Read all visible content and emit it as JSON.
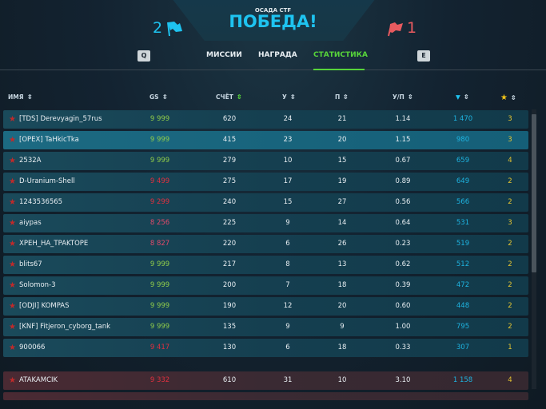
{
  "header": {
    "mode": "ОСАДА CTF",
    "result": "ПОБЕДА!",
    "team_score": "2",
    "enemy_score": "1",
    "team_color": "#1ec3f0",
    "enemy_color": "#e85a5f"
  },
  "tabs": {
    "prev_key": "Q",
    "next_key": "E",
    "items": [
      {
        "label": "МИССИИ"
      },
      {
        "label": "НАГРАДА"
      },
      {
        "label": "СТАТИСТИКА",
        "active": true
      }
    ]
  },
  "columns": {
    "name": "ИМЯ",
    "gs": "GS",
    "score": "СЧЁТ",
    "kills": "У",
    "deaths": "П",
    "kd": "У/П",
    "diamond_icon": "diamond-icon",
    "star_icon": "star-icon"
  },
  "team": [
    {
      "name": "[TDS] Derevyagin_57rus",
      "gs": "9 999",
      "score": "620",
      "kills": "24",
      "deaths": "21",
      "kd": "1.14",
      "diamonds": "1 470",
      "stars": "3"
    },
    {
      "name": "[OPEX] TaHkicTka",
      "gs": "9 999",
      "score": "415",
      "kills": "23",
      "deaths": "20",
      "kd": "1.15",
      "diamonds": "980",
      "stars": "3",
      "selected": true
    },
    {
      "name": "2532A",
      "gs": "9 999",
      "score": "279",
      "kills": "10",
      "deaths": "15",
      "kd": "0.67",
      "diamonds": "659",
      "stars": "4"
    },
    {
      "name": "D-Uranium-Shell",
      "gs": "9 499",
      "score": "275",
      "kills": "17",
      "deaths": "19",
      "kd": "0.89",
      "diamonds": "649",
      "stars": "2"
    },
    {
      "name": "1243536565",
      "gs": "9 299",
      "score": "240",
      "kills": "15",
      "deaths": "27",
      "kd": "0.56",
      "diamonds": "566",
      "stars": "2"
    },
    {
      "name": "aiypas",
      "gs": "8 256",
      "score": "225",
      "kills": "9",
      "deaths": "14",
      "kd": "0.64",
      "diamonds": "531",
      "stars": "3"
    },
    {
      "name": "XPEH_HA_TPAKTOPE",
      "gs": "8 827",
      "score": "220",
      "kills": "6",
      "deaths": "26",
      "kd": "0.23",
      "diamonds": "519",
      "stars": "2"
    },
    {
      "name": "blits67",
      "gs": "9 999",
      "score": "217",
      "kills": "8",
      "deaths": "13",
      "kd": "0.62",
      "diamonds": "512",
      "stars": "2"
    },
    {
      "name": "Solomon-3",
      "gs": "9 999",
      "score": "200",
      "kills": "7",
      "deaths": "18",
      "kd": "0.39",
      "diamonds": "472",
      "stars": "2"
    },
    {
      "name": "[ODJI] KOMPAS",
      "gs": "9 999",
      "score": "190",
      "kills": "12",
      "deaths": "20",
      "kd": "0.60",
      "diamonds": "448",
      "stars": "2"
    },
    {
      "name": "[KNF] Fitjeron_cyborg_tank",
      "gs": "9 999",
      "score": "135",
      "kills": "9",
      "deaths": "9",
      "kd": "1.00",
      "diamonds": "795",
      "stars": "2"
    },
    {
      "name": "900066",
      "gs": "9 417",
      "score": "130",
      "kills": "6",
      "deaths": "18",
      "kd": "0.33",
      "diamonds": "307",
      "stars": "1"
    }
  ],
  "enemy": [
    {
      "name": "ATAKAMCIK",
      "gs": "9 332",
      "score": "610",
      "kills": "31",
      "deaths": "10",
      "kd": "3.10",
      "diamonds": "1 158",
      "stars": "4"
    }
  ]
}
